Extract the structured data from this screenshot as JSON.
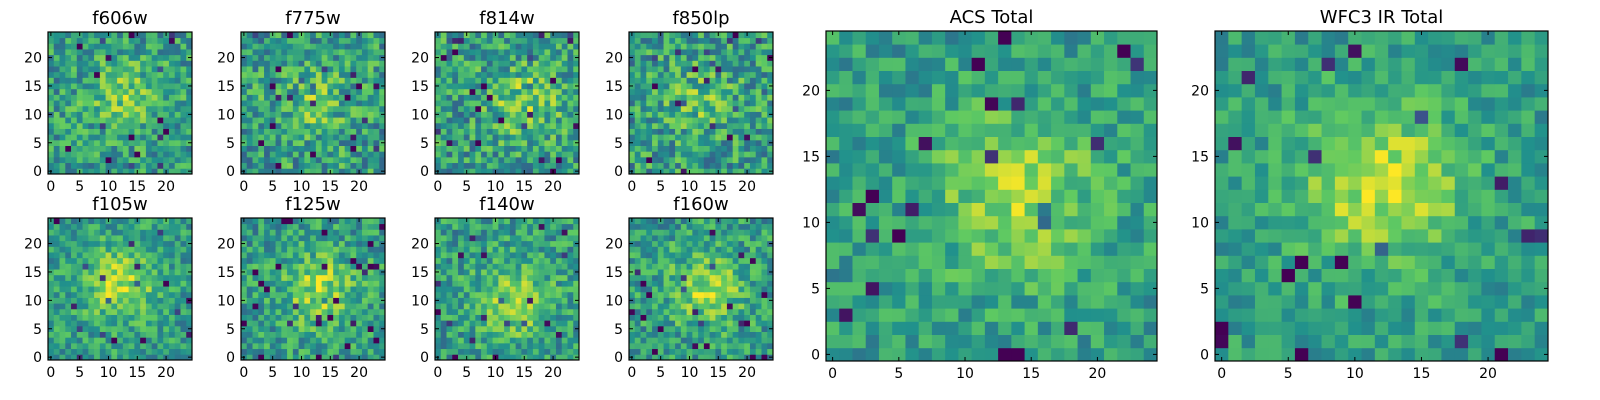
{
  "figure": {
    "description": "Grid of 2D heatmap images (viridis colormap) of a galaxy cutout in individual HST filters and summed totals"
  },
  "colormap": {
    "name": "viridis",
    "stops": [
      "#440154",
      "#3b528b",
      "#21918c",
      "#5ec962",
      "#fde725"
    ]
  },
  "chart_data": [
    {
      "type": "heatmap",
      "title": "f606w",
      "xlim": [
        0,
        24
      ],
      "ylim": [
        0,
        24
      ],
      "xticks": [
        "0",
        "5",
        "10",
        "15",
        "20"
      ],
      "yticks": [
        "0",
        "5",
        "10",
        "15",
        "20"
      ],
      "grid_size": [
        25,
        25
      ],
      "seed": 11,
      "center": [
        13,
        13
      ],
      "blob_strength": 0.22,
      "noise": 0.45
    },
    {
      "type": "heatmap",
      "title": "f775w",
      "xlim": [
        0,
        24
      ],
      "ylim": [
        0,
        24
      ],
      "xticks": [
        "0",
        "5",
        "10",
        "15",
        "20"
      ],
      "yticks": [
        "0",
        "5",
        "10",
        "15",
        "20"
      ],
      "grid_size": [
        25,
        25
      ],
      "seed": 23,
      "center": [
        12,
        12
      ],
      "blob_strength": 0.18,
      "noise": 0.5
    },
    {
      "type": "heatmap",
      "title": "f814w",
      "xlim": [
        0,
        24
      ],
      "ylim": [
        0,
        24
      ],
      "xticks": [
        "0",
        "5",
        "10",
        "15",
        "20"
      ],
      "yticks": [
        "0",
        "5",
        "10",
        "15",
        "20"
      ],
      "grid_size": [
        25,
        25
      ],
      "seed": 37,
      "center": [
        15,
        12
      ],
      "blob_strength": 0.22,
      "noise": 0.5
    },
    {
      "type": "heatmap",
      "title": "f850lp",
      "xlim": [
        0,
        24
      ],
      "ylim": [
        0,
        24
      ],
      "xticks": [
        "0",
        "5",
        "10",
        "15",
        "20"
      ],
      "yticks": [
        "0",
        "5",
        "10",
        "15",
        "20"
      ],
      "grid_size": [
        25,
        25
      ],
      "seed": 41,
      "center": [
        12,
        12
      ],
      "blob_strength": 0.15,
      "noise": 0.5
    },
    {
      "type": "heatmap",
      "title": "f105w",
      "xlim": [
        0,
        24
      ],
      "ylim": [
        0,
        24
      ],
      "xticks": [
        "0",
        "5",
        "10",
        "15",
        "20"
      ],
      "yticks": [
        "0",
        "5",
        "10",
        "15",
        "20"
      ],
      "grid_size": [
        25,
        25
      ],
      "seed": 53,
      "center": [
        12,
        13
      ],
      "blob_strength": 0.32,
      "noise": 0.38
    },
    {
      "type": "heatmap",
      "title": "f125w",
      "xlim": [
        0,
        24
      ],
      "ylim": [
        0,
        24
      ],
      "xticks": [
        "0",
        "5",
        "10",
        "15",
        "20"
      ],
      "yticks": [
        "0",
        "5",
        "10",
        "15",
        "20"
      ],
      "grid_size": [
        25,
        25
      ],
      "seed": 67,
      "center": [
        13,
        12
      ],
      "blob_strength": 0.28,
      "noise": 0.42
    },
    {
      "type": "heatmap",
      "title": "f140w",
      "xlim": [
        0,
        24
      ],
      "ylim": [
        0,
        24
      ],
      "xticks": [
        "0",
        "5",
        "10",
        "15",
        "20"
      ],
      "yticks": [
        "0",
        "5",
        "10",
        "15",
        "20"
      ],
      "grid_size": [
        25,
        25
      ],
      "seed": 79,
      "center": [
        13,
        10
      ],
      "blob_strength": 0.28,
      "noise": 0.42
    },
    {
      "type": "heatmap",
      "title": "f160w",
      "xlim": [
        0,
        24
      ],
      "ylim": [
        0,
        24
      ],
      "xticks": [
        "0",
        "5",
        "10",
        "15",
        "20"
      ],
      "yticks": [
        "0",
        "5",
        "10",
        "15",
        "20"
      ],
      "grid_size": [
        25,
        25
      ],
      "seed": 83,
      "center": [
        13,
        12
      ],
      "blob_strength": 0.28,
      "noise": 0.42
    },
    {
      "type": "heatmap",
      "title": "ACS Total",
      "xlim": [
        0,
        24
      ],
      "ylim": [
        0,
        24
      ],
      "xticks": [
        "0",
        "5",
        "10",
        "15",
        "20"
      ],
      "yticks": [
        "0",
        "5",
        "10",
        "15",
        "20"
      ],
      "grid_size": [
        25,
        25
      ],
      "seed": 97,
      "center": [
        14,
        12
      ],
      "blob_strength": 0.3,
      "noise": 0.33
    },
    {
      "type": "heatmap",
      "title": "WFC3 IR Total",
      "xlim": [
        0,
        24
      ],
      "ylim": [
        0,
        24
      ],
      "xticks": [
        "0",
        "5",
        "10",
        "15",
        "20"
      ],
      "yticks": [
        "0",
        "5",
        "10",
        "15",
        "20"
      ],
      "grid_size": [
        25,
        25
      ],
      "seed": 101,
      "center": [
        12,
        13
      ],
      "blob_strength": 0.36,
      "noise": 0.3
    }
  ]
}
